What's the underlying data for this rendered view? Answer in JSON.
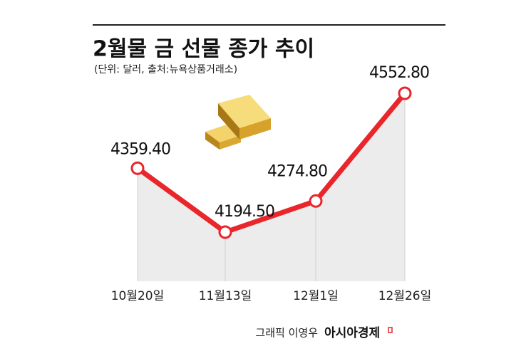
{
  "chart_data": {
    "type": "line",
    "title": "2월물 금 선물 종가 추이",
    "subtitle": "(단위: 달러, 출처:뉴욕상품거래소)",
    "categories": [
      "10월20일",
      "11월13일",
      "12월1일",
      "12월26일"
    ],
    "series": [
      {
        "name": "종가",
        "color": "#e8262b",
        "values": [
          4359.4,
          4194.5,
          4274.8,
          4552.8
        ],
        "value_labels": [
          "4359.40",
          "4194.50",
          "4274.80",
          "4552.80"
        ]
      }
    ],
    "credit": "그래픽 이영우",
    "brand": "아시아경제"
  }
}
